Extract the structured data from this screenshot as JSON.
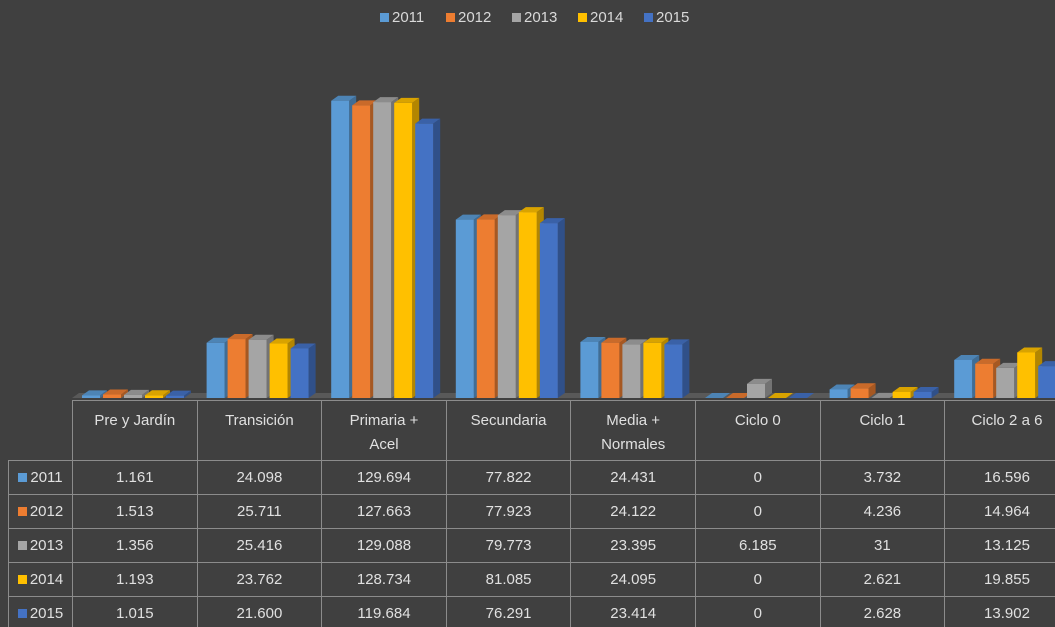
{
  "chart_data": {
    "type": "bar",
    "categories": [
      "Pre y Jardín",
      "Transición",
      "Primaria + Acel",
      "Secundaria",
      "Media + Normales",
      "Ciclo 0",
      "Ciclo 1",
      "Ciclo 2 a 6"
    ],
    "ylim": [
      0,
      130000
    ],
    "series": [
      {
        "name": "2011",
        "color": "#5b9bd5",
        "values": [
          1161,
          24098,
          129694,
          77822,
          24431,
          0,
          3732,
          16596
        ],
        "value_labels": [
          "1.161",
          "24.098",
          "129.694",
          "77.822",
          "24.431",
          "0",
          "3.732",
          "16.596"
        ]
      },
      {
        "name": "2012",
        "color": "#ed7d31",
        "values": [
          1513,
          25711,
          127663,
          77923,
          24122,
          0,
          4236,
          14964
        ],
        "value_labels": [
          "1.513",
          "25.711",
          "127.663",
          "77.923",
          "24.122",
          "0",
          "4.236",
          "14.964"
        ]
      },
      {
        "name": "2013",
        "color": "#a5a5a5",
        "values": [
          1356,
          25416,
          129088,
          79773,
          23395,
          6185,
          31,
          13125
        ],
        "value_labels": [
          "1.356",
          "25.416",
          "129.088",
          "79.773",
          "23.395",
          "6.185",
          "31",
          "13.125"
        ]
      },
      {
        "name": "2014",
        "color": "#ffc000",
        "values": [
          1193,
          23762,
          128734,
          81085,
          24095,
          0,
          2621,
          19855
        ],
        "value_labels": [
          "1.193",
          "23.762",
          "128.734",
          "81.085",
          "24.095",
          "0",
          "2.621",
          "19.855"
        ]
      },
      {
        "name": "2015",
        "color": "#4472c4",
        "values": [
          1015,
          21600,
          119684,
          76291,
          23414,
          0,
          2628,
          13902
        ],
        "value_labels": [
          "1.015",
          "21.600",
          "119.684",
          "76.291",
          "23.414",
          "0",
          "2.628",
          "13.902"
        ]
      }
    ]
  }
}
